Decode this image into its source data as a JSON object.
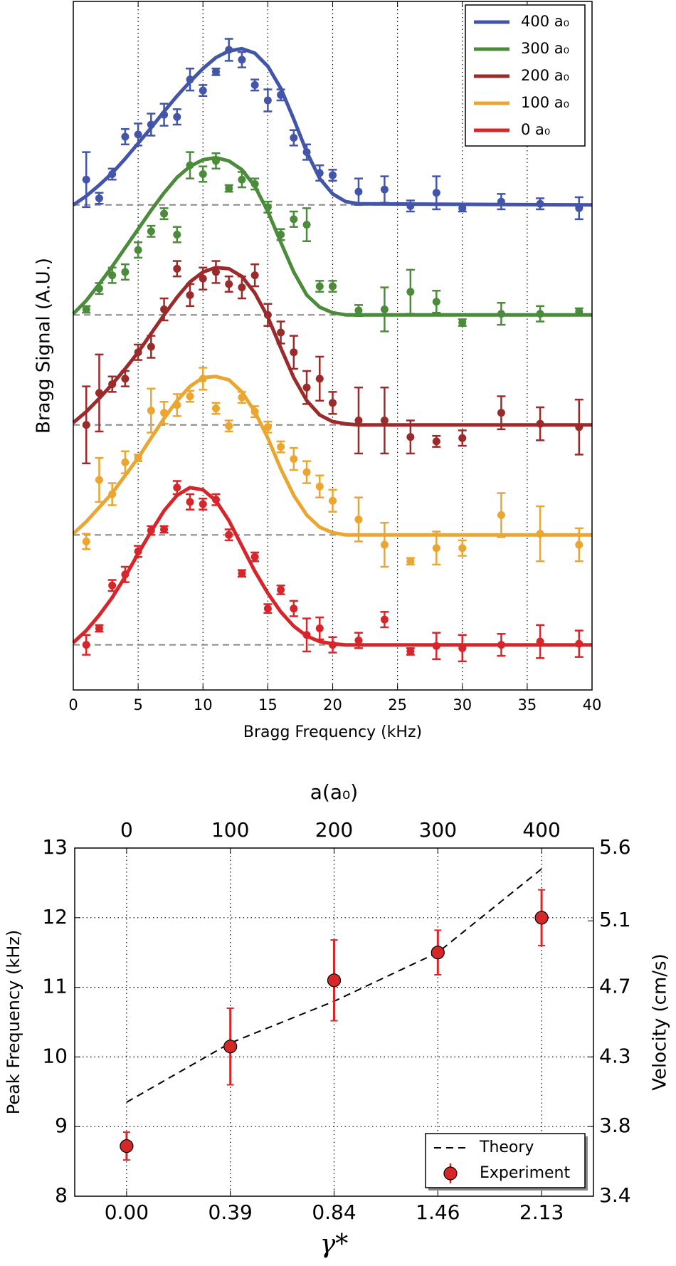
{
  "chart_data": [
    {
      "type": "line",
      "xlabel": "Bragg Frequency (kHz)",
      "ylabel": "Bragg Signal (A.U.)",
      "xlim": [
        0,
        40
      ],
      "ylim": [
        -0.41,
        5.85
      ],
      "xticks": [
        0,
        5,
        10,
        15,
        20,
        25,
        30,
        35,
        40
      ],
      "grid": "x",
      "legend": "upper right",
      "x": [
        1,
        2,
        3,
        4,
        5,
        6,
        7,
        8,
        9,
        10,
        11,
        12,
        13,
        14,
        15,
        16,
        17,
        18,
        19,
        20,
        22,
        24,
        26,
        28,
        30,
        33,
        36,
        39
      ],
      "fit_x": [
        0,
        1,
        2,
        3,
        4,
        5,
        6,
        7,
        8,
        9,
        10,
        11,
        12,
        13,
        14,
        15,
        16,
        17,
        18,
        19,
        20,
        21,
        22,
        40
      ],
      "series": [
        {
          "name": "400 a₀",
          "color": "#4355a9",
          "baseline": 4,
          "values": [
            4.23,
            4.06,
            4.28,
            4.62,
            4.64,
            4.73,
            4.82,
            4.8,
            5.14,
            5.04,
            5.21,
            5.41,
            5.32,
            5.09,
            4.95,
            5.0,
            4.61,
            4.48,
            4.29,
            4.27,
            4.12,
            4.14,
            3.99,
            4.11,
            3.97,
            4.03,
            4.01,
            3.97
          ],
          "errors": [
            0.25,
            0.05,
            0.05,
            0.07,
            0.1,
            0.1,
            0.1,
            0.07,
            0.1,
            0.05,
            0.03,
            0.1,
            0.07,
            0.05,
            0.1,
            0.05,
            0.07,
            0.07,
            0.07,
            0.05,
            0.12,
            0.12,
            0.05,
            0.15,
            0.03,
            0.07,
            0.05,
            0.1
          ],
          "fit": [
            4.0,
            4.08,
            4.18,
            4.29,
            4.42,
            4.56,
            4.7,
            4.85,
            4.99,
            5.12,
            5.24,
            5.34,
            5.4,
            5.42,
            5.38,
            5.26,
            5.06,
            4.78,
            4.48,
            4.24,
            4.1,
            4.03,
            4.01,
            4.0
          ]
        },
        {
          "name": "300 a₀",
          "color": "#4b8b3b",
          "baseline": 3,
          "values": [
            3.05,
            3.24,
            3.36,
            3.39,
            3.59,
            3.76,
            3.92,
            3.73,
            4.36,
            4.28,
            4.4,
            4.15,
            4.23,
            4.19,
            3.98,
            3.73,
            3.87,
            3.82,
            3.26,
            3.26,
            3.04,
            3.05,
            3.21,
            3.12,
            2.93,
            3.01,
            3.01,
            3.03
          ],
          "errors": [
            0.03,
            0.05,
            0.07,
            0.07,
            0.07,
            0.05,
            0.05,
            0.07,
            0.12,
            0.07,
            0.07,
            0.03,
            0.07,
            0.05,
            0.05,
            0.05,
            0.07,
            0.15,
            0.05,
            0.05,
            0.05,
            0.2,
            0.2,
            0.1,
            0.03,
            0.1,
            0.07,
            0.03
          ],
          "fit": [
            3.01,
            3.13,
            3.28,
            3.44,
            3.61,
            3.78,
            3.95,
            4.11,
            4.25,
            4.35,
            4.41,
            4.43,
            4.4,
            4.32,
            4.17,
            3.94,
            3.66,
            3.39,
            3.18,
            3.07,
            3.02,
            3.0,
            3.0,
            3.0
          ]
        },
        {
          "name": "200 a₀",
          "color": "#9b2b2b",
          "baseline": 2,
          "values": [
            2.0,
            2.29,
            2.37,
            2.42,
            2.66,
            2.71,
            3.05,
            3.42,
            3.18,
            3.33,
            3.39,
            3.28,
            3.25,
            3.36,
            3.0,
            2.84,
            2.66,
            2.34,
            2.42,
            2.2,
            2.04,
            2.04,
            1.89,
            1.85,
            1.88,
            2.11,
            2.01,
            1.98
          ],
          "errors": [
            0.35,
            0.35,
            0.07,
            0.07,
            0.07,
            0.1,
            0.1,
            0.07,
            0.1,
            0.1,
            0.1,
            0.07,
            0.1,
            0.1,
            0.1,
            0.1,
            0.15,
            0.15,
            0.2,
            0.1,
            0.3,
            0.3,
            0.15,
            0.05,
            0.07,
            0.15,
            0.15,
            0.25
          ],
          "fit": [
            2.02,
            2.12,
            2.24,
            2.37,
            2.51,
            2.66,
            2.83,
            3.0,
            3.16,
            3.3,
            3.39,
            3.43,
            3.42,
            3.35,
            3.2,
            2.98,
            2.7,
            2.43,
            2.22,
            2.09,
            2.03,
            2.01,
            2.0,
            2.0
          ]
        },
        {
          "name": "100 a₀",
          "color": "#eba631",
          "baseline": 1,
          "values": [
            0.94,
            1.5,
            1.37,
            1.66,
            1.7,
            2.13,
            2.11,
            2.18,
            2.26,
            2.42,
            2.15,
            1.99,
            2.25,
            2.12,
            1.98,
            1.8,
            1.69,
            1.57,
            1.44,
            1.31,
            1.14,
            0.91,
            0.76,
            0.88,
            0.88,
            1.18,
            1.01,
            0.91
          ],
          "errors": [
            0.07,
            0.2,
            0.1,
            0.1,
            0.03,
            0.2,
            0.1,
            0.1,
            0.05,
            0.1,
            0.05,
            0.05,
            0.05,
            0.05,
            0.05,
            0.05,
            0.1,
            0.1,
            0.1,
            0.1,
            0.2,
            0.2,
            0.03,
            0.15,
            0.07,
            0.2,
            0.25,
            0.15
          ],
          "fit": [
            1.01,
            1.12,
            1.25,
            1.38,
            1.54,
            1.7,
            1.88,
            2.06,
            2.22,
            2.35,
            2.43,
            2.44,
            2.41,
            2.3,
            2.12,
            1.88,
            1.6,
            1.36,
            1.18,
            1.07,
            1.02,
            1.0,
            1.0,
            1.0
          ]
        },
        {
          "name": "0 a₀",
          "color": "#d7262b",
          "baseline": 0,
          "values": [
            0.0,
            0.15,
            0.54,
            0.64,
            0.85,
            1.04,
            1.05,
            1.43,
            1.3,
            1.28,
            1.32,
            1.0,
            0.65,
            0.8,
            0.33,
            0.5,
            0.33,
            0.09,
            0.15,
            0.0,
            0.04,
            0.23,
            -0.06,
            -0.01,
            -0.03,
            0.0,
            0.03,
            0.01
          ],
          "errors": [
            0.09,
            0.03,
            0.05,
            0.07,
            0.05,
            0.04,
            0.03,
            0.06,
            0.07,
            0.05,
            0.05,
            0.05,
            0.03,
            0.04,
            0.04,
            0.04,
            0.07,
            0.15,
            0.1,
            0.07,
            0.07,
            0.07,
            0.03,
            0.12,
            0.12,
            0.1,
            0.15,
            0.12
          ],
          "fit": [
            0.02,
            0.13,
            0.27,
            0.43,
            0.62,
            0.83,
            1.03,
            1.22,
            1.36,
            1.43,
            1.41,
            1.31,
            1.13,
            0.9,
            0.67,
            0.47,
            0.3,
            0.17,
            0.08,
            0.03,
            0.01,
            0,
            0,
            0
          ]
        }
      ]
    },
    {
      "type": "scatter",
      "xlabel": "γ*",
      "x2label": "a(a₀)",
      "ylabel": "Peak Frequency (kHz)",
      "y2label": "Velocity (cm/s)",
      "x": [
        0,
        100,
        200,
        300,
        400
      ],
      "categories": [
        "0.00",
        "0.39",
        "0.84",
        "1.46",
        "2.13"
      ],
      "xlim": [
        -50,
        450
      ],
      "x2ticks": [
        0,
        100,
        200,
        300,
        400
      ],
      "ylim": [
        8,
        13
      ],
      "yticks": [
        8,
        9,
        10,
        11,
        12,
        13
      ],
      "y2lim": [
        3.4,
        5.6
      ],
      "y2ticks": [
        3.4,
        {
          "value": 3.84,
          "label": "3.8"
        },
        {
          "value": 4.28,
          "label": "4.3"
        },
        {
          "value": 4.72,
          "label": "4.7"
        },
        {
          "value": 5.14,
          "label": "5.1"
        },
        5.6
      ],
      "grid": true,
      "legend": "lower right",
      "series": [
        {
          "name": "Theory",
          "color": "#000000",
          "style": "dashed",
          "values": [
            9.35,
            10.2,
            10.8,
            11.5,
            12.7
          ]
        },
        {
          "name": "Experiment",
          "color": "#d62728",
          "style": "errorbar",
          "values": [
            8.72,
            10.15,
            11.1,
            11.5,
            12.0
          ],
          "errors": [
            0.2,
            0.55,
            0.58,
            0.32,
            0.4
          ]
        }
      ]
    }
  ]
}
